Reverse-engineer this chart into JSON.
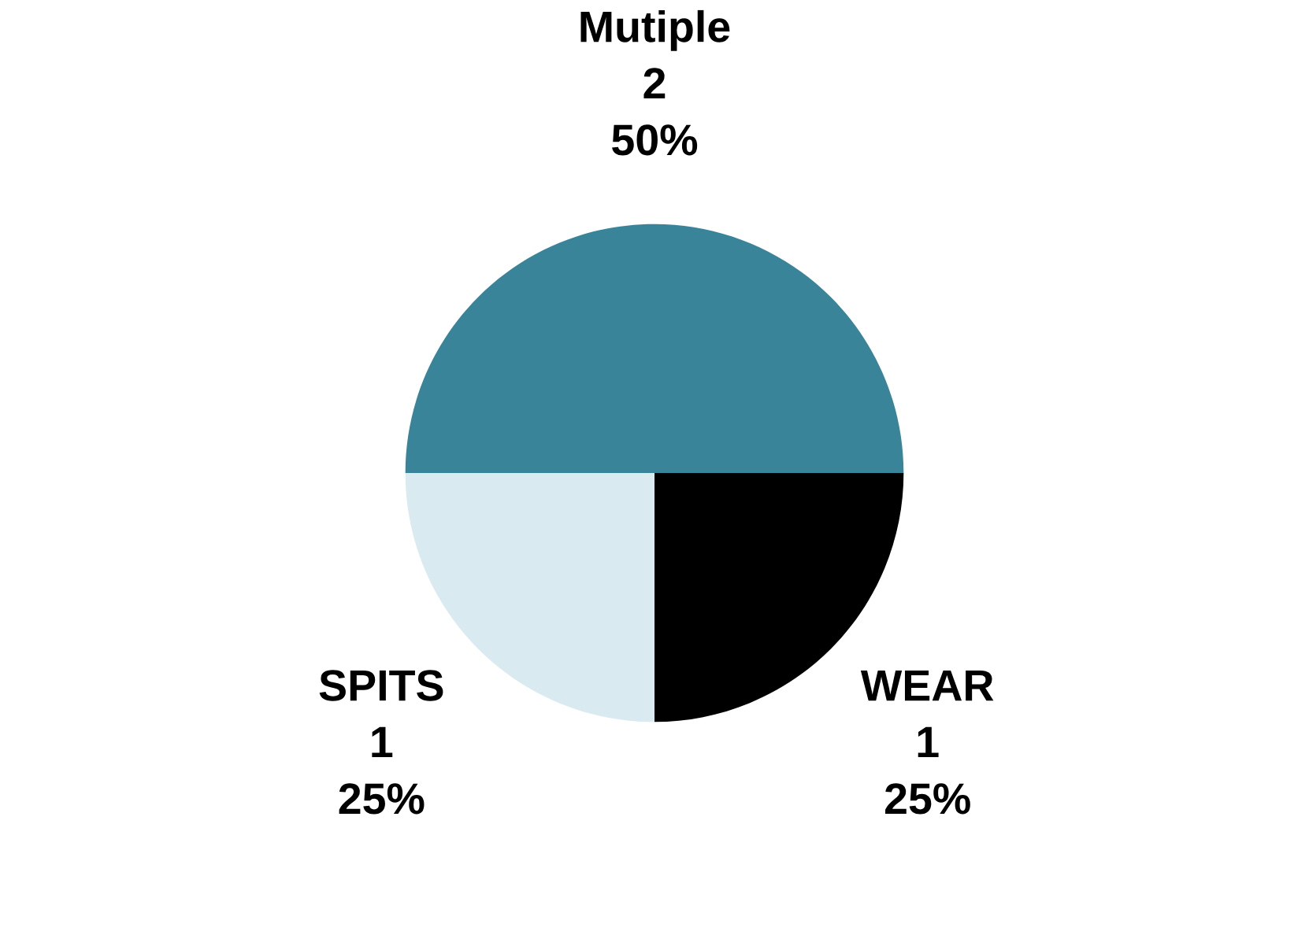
{
  "chart_data": {
    "type": "pie",
    "categories": [
      "Mutiple",
      "SPITS",
      "WEAR"
    ],
    "values": [
      2,
      1,
      1
    ],
    "value_labels": [
      "2\n50%",
      "1\n25%",
      "1\n25%"
    ],
    "colors": [
      "#3a8499",
      "#d9eaf0",
      "#000000"
    ],
    "legend": false
  }
}
